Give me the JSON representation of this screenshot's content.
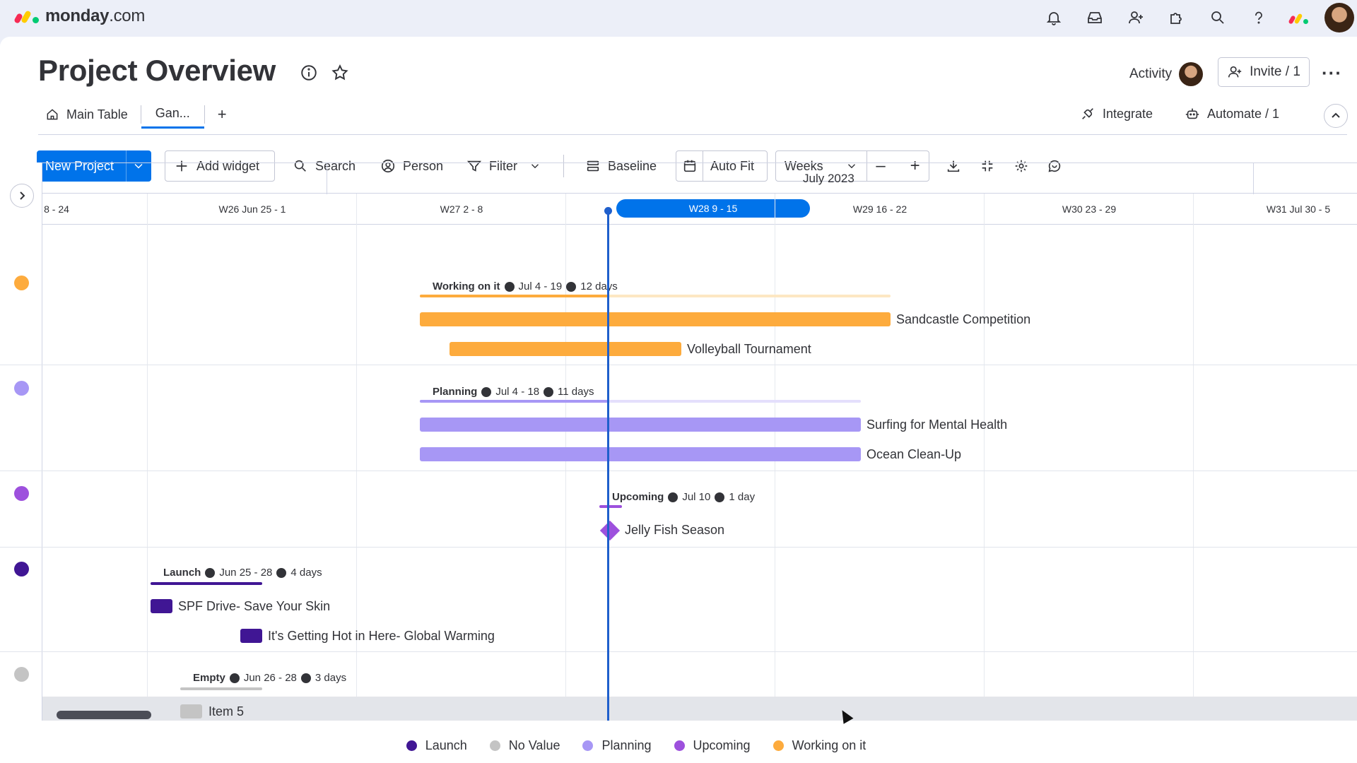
{
  "app": {
    "logo_text": "monday",
    "logo_suffix": ".com"
  },
  "page": {
    "title": "Project Overview",
    "activity_label": "Activity",
    "invite_label": "Invite / 1"
  },
  "tabs": [
    {
      "label": "Main Table"
    },
    {
      "label": "Gan..."
    }
  ],
  "tab_add": "+",
  "header_actions": {
    "integrate": "Integrate",
    "automate": "Automate / 1"
  },
  "toolbar": {
    "new_project": "New Project",
    "add_widget": "Add widget",
    "search": "Search",
    "person": "Person",
    "filter": "Filter",
    "baseline": "Baseline",
    "auto_fit": "Auto Fit",
    "weeks": "Weeks",
    "zoom_out": "–",
    "zoom_in": "+"
  },
  "timeline": {
    "month": "July 2023",
    "weeks": [
      "8 - 24",
      "W26 Jun 25 - 1",
      "W27 2 - 8",
      "W28 9 - 15",
      "W29 16 - 22",
      "W30 23 - 29",
      "W31 Jul 30 - 5"
    ],
    "current_week": "W28 9 - 15"
  },
  "groups": [
    {
      "name": "Working on it",
      "dates": "Jul 4 - 19",
      "duration": "12 days",
      "color": "#fdab3d",
      "items": [
        "Sandcastle Competition",
        "Volleyball Tournament"
      ]
    },
    {
      "name": "Planning",
      "dates": "Jul 4 - 18",
      "duration": "11 days",
      "color": "#a797f5",
      "items": [
        "Surfing for Mental Health",
        "Ocean Clean-Up"
      ]
    },
    {
      "name": "Upcoming",
      "dates": "Jul 10",
      "duration": "1 day",
      "color": "#9d50dd",
      "items": [
        "Jelly Fish Season"
      ]
    },
    {
      "name": "Launch",
      "dates": "Jun 25 - 28",
      "duration": "4 days",
      "color": "#401694",
      "items": [
        "SPF Drive- Save Your Skin",
        "It's Getting Hot in Here- Global Warming"
      ]
    },
    {
      "name": "Empty",
      "dates": "Jun 26 - 28",
      "duration": "3 days",
      "color": "#c4c4c4",
      "items": [
        "Item 5"
      ]
    }
  ],
  "legend": [
    {
      "label": "Launch",
      "color": "#401694"
    },
    {
      "label": "No Value",
      "color": "#c4c4c4"
    },
    {
      "label": "Planning",
      "color": "#a797f5"
    },
    {
      "label": "Upcoming",
      "color": "#9d50dd"
    },
    {
      "label": "Working on it",
      "color": "#fdab3d"
    }
  ]
}
